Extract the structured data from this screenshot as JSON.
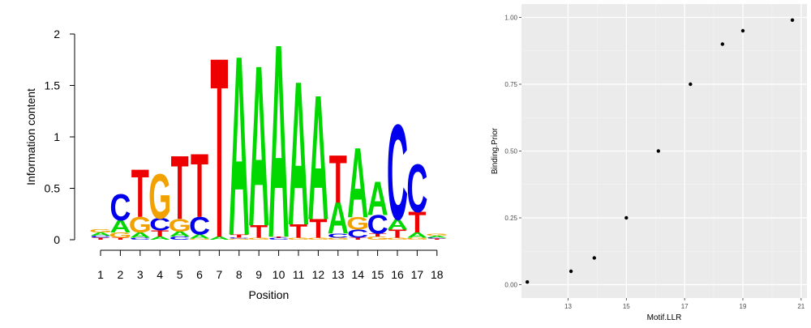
{
  "chart_data": [
    {
      "type": "sequence-logo",
      "xlabel": "Position",
      "ylabel": "Information content",
      "ylim": [
        0,
        2
      ],
      "yticks": [
        0,
        0.5,
        1,
        1.5,
        2
      ],
      "ytick_labels": [
        "0",
        "0.5",
        "1",
        "1.5",
        "2"
      ],
      "positions": [
        "1",
        "2",
        "3",
        "4",
        "5",
        "6",
        "7",
        "8",
        "9",
        "10",
        "11",
        "12",
        "13",
        "14",
        "15",
        "16",
        "17",
        "18"
      ],
      "colors": {
        "A": "#00d800",
        "C": "#0000ee",
        "G": "#f2a200",
        "T": "#ee0000"
      },
      "columns": [
        [
          {
            "l": "T",
            "h": 0.02
          },
          {
            "l": "C",
            "h": 0.02
          },
          {
            "l": "A",
            "h": 0.03
          },
          {
            "l": "G",
            "h": 0.03
          }
        ],
        [
          {
            "l": "T",
            "h": 0.02
          },
          {
            "l": "G",
            "h": 0.05
          },
          {
            "l": "A",
            "h": 0.12
          },
          {
            "l": "C",
            "h": 0.25
          }
        ],
        [
          {
            "l": "C",
            "h": 0.02
          },
          {
            "l": "A",
            "h": 0.05
          },
          {
            "l": "G",
            "h": 0.15
          },
          {
            "l": "T",
            "h": 0.45
          }
        ],
        [
          {
            "l": "A",
            "h": 0.03
          },
          {
            "l": "T",
            "h": 0.06
          },
          {
            "l": "C",
            "h": 0.12
          },
          {
            "l": "G",
            "h": 0.42
          }
        ],
        [
          {
            "l": "C",
            "h": 0.03
          },
          {
            "l": "A",
            "h": 0.05
          },
          {
            "l": "G",
            "h": 0.12
          },
          {
            "l": "T",
            "h": 0.6
          }
        ],
        [
          {
            "l": "G",
            "h": 0.01
          },
          {
            "l": "A",
            "h": 0.04
          },
          {
            "l": "C",
            "h": 0.17
          },
          {
            "l": "T",
            "h": 0.6
          }
        ],
        [
          {
            "l": "A",
            "h": 0.03
          },
          {
            "l": "T",
            "h": 1.7
          }
        ],
        [
          {
            "l": "G",
            "h": 0.01
          },
          {
            "l": "C",
            "h": 0.01
          },
          {
            "l": "T",
            "h": 0.03
          },
          {
            "l": "A",
            "h": 1.7
          }
        ],
        [
          {
            "l": "G",
            "h": 0.02
          },
          {
            "l": "T",
            "h": 0.12
          },
          {
            "l": "A",
            "h": 1.52
          }
        ],
        [
          {
            "l": "C",
            "h": 0.02
          },
          {
            "l": "T",
            "h": 0.01
          },
          {
            "l": "A",
            "h": 1.83
          }
        ],
        [
          {
            "l": "G",
            "h": 0.02
          },
          {
            "l": "T",
            "h": 0.13
          },
          {
            "l": "A",
            "h": 1.36
          }
        ],
        [
          {
            "l": "G",
            "h": 0.02
          },
          {
            "l": "T",
            "h": 0.18
          },
          {
            "l": "A",
            "h": 1.18
          }
        ],
        [
          {
            "l": "G",
            "h": 0.02
          },
          {
            "l": "C",
            "h": 0.04
          },
          {
            "l": "A",
            "h": 0.3
          },
          {
            "l": "T",
            "h": 0.45
          }
        ],
        [
          {
            "l": "T",
            "h": 0.02
          },
          {
            "l": "C",
            "h": 0.08
          },
          {
            "l": "G",
            "h": 0.12
          },
          {
            "l": "A",
            "h": 0.66
          }
        ],
        [
          {
            "l": "G",
            "h": 0.03
          },
          {
            "l": "T",
            "h": 0.03
          },
          {
            "l": "C",
            "h": 0.18
          },
          {
            "l": "A",
            "h": 0.32
          }
        ],
        [
          {
            "l": "G",
            "h": 0.02
          },
          {
            "l": "T",
            "h": 0.08
          },
          {
            "l": "A",
            "h": 0.1
          },
          {
            "l": "C",
            "h": 0.9
          }
        ],
        [
          {
            "l": "G",
            "h": 0.02
          },
          {
            "l": "A",
            "h": 0.05
          },
          {
            "l": "T",
            "h": 0.2
          },
          {
            "l": "C",
            "h": 0.45
          }
        ],
        [
          {
            "l": "T",
            "h": 0.01
          },
          {
            "l": "C",
            "h": 0.01
          },
          {
            "l": "A",
            "h": 0.02
          },
          {
            "l": "G",
            "h": 0.02
          }
        ]
      ]
    },
    {
      "type": "scatter",
      "xlabel": "Motif.LLR",
      "ylabel": "Binding.Prior",
      "xlim": [
        11.4,
        21.2
      ],
      "ylim": [
        -0.05,
        1.05
      ],
      "xticks": [
        13,
        15,
        17,
        19,
        21
      ],
      "xtick_labels": [
        "13",
        "15",
        "17",
        "19",
        "21"
      ],
      "yticks": [
        0,
        0.25,
        0.5,
        0.75,
        1
      ],
      "ytick_labels": [
        "0.00",
        "0.25",
        "0.50",
        "0.75",
        "1.00"
      ],
      "grid": true,
      "points": [
        {
          "x": 11.6,
          "y": 0.01
        },
        {
          "x": 13.1,
          "y": 0.05
        },
        {
          "x": 13.9,
          "y": 0.1
        },
        {
          "x": 15.0,
          "y": 0.25
        },
        {
          "x": 16.1,
          "y": 0.5
        },
        {
          "x": 17.2,
          "y": 0.75
        },
        {
          "x": 18.3,
          "y": 0.9
        },
        {
          "x": 19.0,
          "y": 0.95
        },
        {
          "x": 20.7,
          "y": 0.99
        }
      ]
    }
  ]
}
